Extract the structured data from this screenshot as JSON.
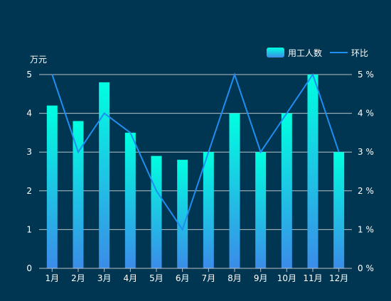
{
  "chart_data": {
    "type": "bar",
    "categories": [
      "1月",
      "2月",
      "3月",
      "4月",
      "5月",
      "6月",
      "7月",
      "8月",
      "9月",
      "10月",
      "11月",
      "12月"
    ],
    "series": [
      {
        "name": "用工人数",
        "type": "bar",
        "axis": "left",
        "values": [
          4.2,
          3.8,
          4.8,
          3.5,
          2.9,
          2.8,
          3.0,
          4.0,
          3.0,
          4.0,
          5.0,
          3.0
        ]
      },
      {
        "name": "环比",
        "type": "line",
        "axis": "right",
        "values": [
          5,
          3,
          4,
          3.5,
          2,
          1,
          3,
          5,
          3,
          4,
          5,
          3
        ]
      }
    ],
    "yleft": {
      "label": "万元",
      "min": 0,
      "max": 5,
      "ticks": [
        "0",
        "1",
        "2",
        "3",
        "4",
        "5"
      ]
    },
    "yright": {
      "min": 0,
      "max": 5,
      "ticks": [
        "0 %",
        "1 %",
        "2 %",
        "3 %",
        "4 %",
        "5 %"
      ]
    },
    "legend_position": "top-right",
    "grid": true,
    "colors": {
      "background": "#003651",
      "bar_top": "#00ffe0",
      "bar_bottom": "#3b8ce8",
      "line": "#1f8ef1",
      "grid": "#b8c3cc",
      "text": "#ffffff"
    }
  }
}
